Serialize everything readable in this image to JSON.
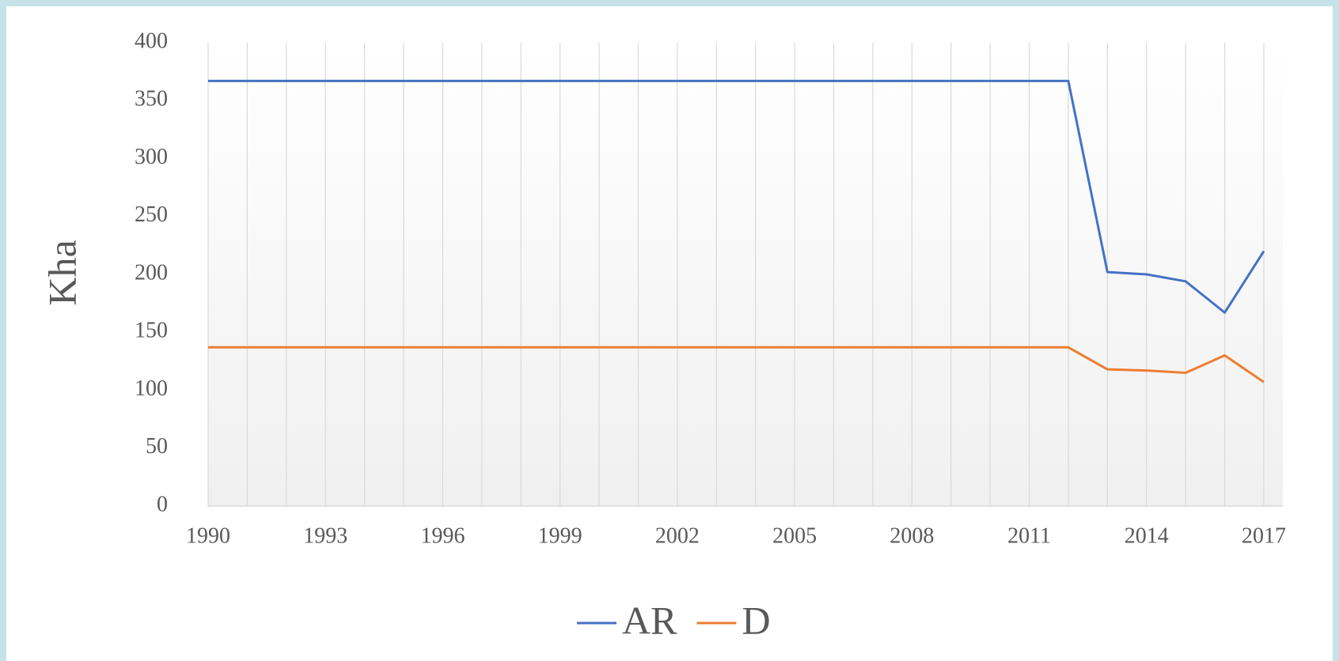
{
  "chart_data": {
    "type": "line",
    "y_label": "Kha",
    "x": [
      1990,
      1991,
      1992,
      1993,
      1994,
      1995,
      1996,
      1997,
      1998,
      1999,
      2000,
      2001,
      2002,
      2003,
      2004,
      2005,
      2006,
      2007,
      2008,
      2009,
      2010,
      2011,
      2012,
      2013,
      2014,
      2015,
      2016,
      2017
    ],
    "xlim": [
      1990,
      2017
    ],
    "xticks": [
      1990,
      1993,
      1996,
      1999,
      2002,
      2005,
      2008,
      2011,
      2014,
      2017
    ],
    "ylim": [
      0,
      400
    ],
    "yticks": [
      0,
      50,
      100,
      150,
      200,
      250,
      300,
      350,
      400
    ],
    "grid": true,
    "legend": "bottom",
    "series": [
      {
        "name": "AR",
        "color": "#4472c4",
        "values": [
          367,
          367,
          367,
          367,
          367,
          367,
          367,
          367,
          367,
          367,
          367,
          367,
          367,
          367,
          367,
          367,
          367,
          367,
          367,
          367,
          367,
          367,
          367,
          202,
          200,
          194,
          167,
          220
        ]
      },
      {
        "name": "D",
        "color": "#ed7d31",
        "values": [
          137,
          137,
          137,
          137,
          137,
          137,
          137,
          137,
          137,
          137,
          137,
          137,
          137,
          137,
          137,
          137,
          137,
          137,
          137,
          137,
          137,
          137,
          137,
          118,
          117,
          115,
          130,
          107
        ]
      }
    ]
  }
}
